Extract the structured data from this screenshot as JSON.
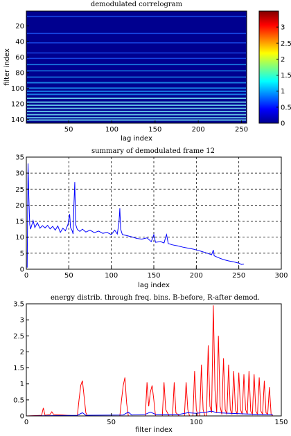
{
  "chart_data": [
    {
      "type": "heatmap",
      "title": "demodulated correlogram",
      "xlabel": "lag index",
      "ylabel": "filter index",
      "xlim": [
        1,
        256
      ],
      "ylim": [
        1,
        145
      ],
      "y_reversed": true,
      "xticks": [
        50,
        100,
        150,
        200,
        250
      ],
      "yticks": [
        20,
        40,
        60,
        80,
        100,
        120,
        140
      ],
      "colormap": "jet",
      "clim": [
        0,
        3.5
      ],
      "colorbar": {
        "ticks": [
          0,
          0.5,
          1,
          1.5,
          2,
          2.5,
          3
        ],
        "tick_labels": [
          "0",
          "0.5",
          "1",
          "1.5",
          "2",
          "2.5",
          "3"
        ]
      },
      "bright_rows": [
        8,
        30,
        42,
        55,
        62,
        70,
        78,
        86,
        93,
        100,
        104,
        108,
        113,
        118,
        122,
        126,
        130,
        134,
        138,
        141
      ],
      "background_color": "#00008f"
    },
    {
      "type": "line",
      "title": "summary of demodulated frame 12",
      "xlabel": "lag index",
      "ylabel": "",
      "xlim": [
        0,
        300
      ],
      "ylim": [
        0,
        35
      ],
      "xticks": [
        0,
        50,
        100,
        150,
        200,
        250,
        300
      ],
      "yticks": [
        0,
        5,
        10,
        15,
        20,
        25,
        30,
        35
      ],
      "grid": true,
      "series": [
        {
          "color": "#0000ff",
          "points": [
            [
              1,
              0.5
            ],
            [
              2,
              33
            ],
            [
              3,
              22
            ],
            [
              4,
              14
            ],
            [
              5,
              12.5
            ],
            [
              8,
              15.2
            ],
            [
              10,
              13
            ],
            [
              13,
              14.5
            ],
            [
              16,
              12.8
            ],
            [
              19,
              13.6
            ],
            [
              22,
              12.9
            ],
            [
              25,
              13.7
            ],
            [
              28,
              12.6
            ],
            [
              31,
              13.4
            ],
            [
              34,
              12.2
            ],
            [
              37,
              13.5
            ],
            [
              40,
              11.5
            ],
            [
              43,
              12.8
            ],
            [
              46,
              12
            ],
            [
              49,
              14
            ],
            [
              51,
              17.2
            ],
            [
              52,
              13
            ],
            [
              54,
              12
            ],
            [
              55,
              11
            ],
            [
              56,
              20
            ],
            [
              57,
              27.2
            ],
            [
              58,
              14
            ],
            [
              60,
              12.4
            ],
            [
              63,
              11.8
            ],
            [
              66,
              12.5
            ],
            [
              70,
              11.6
            ],
            [
              75,
              12.2
            ],
            [
              80,
              11.4
            ],
            [
              85,
              11.9
            ],
            [
              90,
              11.2
            ],
            [
              95,
              11.5
            ],
            [
              100,
              10.8
            ],
            [
              104,
              12.2
            ],
            [
              107,
              11
            ],
            [
              109,
              14.5
            ],
            [
              110,
              19
            ],
            [
              111,
              12.5
            ],
            [
              113,
              10.8
            ],
            [
              118,
              10.5
            ],
            [
              124,
              10.1
            ],
            [
              130,
              9.6
            ],
            [
              136,
              9.4
            ],
            [
              142,
              9.8
            ],
            [
              147,
              8.6
            ],
            [
              150,
              10.8
            ],
            [
              152,
              8.4
            ],
            [
              158,
              8.6
            ],
            [
              162,
              8.2
            ],
            [
              164,
              10
            ],
            [
              165,
              10.8
            ],
            [
              167,
              8
            ],
            [
              172,
              7.6
            ],
            [
              178,
              7.3
            ],
            [
              184,
              6.9
            ],
            [
              190,
              6.6
            ],
            [
              196,
              6.3
            ],
            [
              202,
              5.9
            ],
            [
              208,
              5.4
            ],
            [
              214,
              4.9
            ],
            [
              218,
              4.5
            ],
            [
              220,
              6
            ],
            [
              221,
              4.2
            ],
            [
              226,
              3.6
            ],
            [
              232,
              3
            ],
            [
              238,
              2.6
            ],
            [
              244,
              2.3
            ],
            [
              250,
              1.9
            ],
            [
              253,
              1.5
            ],
            [
              256,
              1.6
            ]
          ]
        }
      ]
    },
    {
      "type": "line",
      "title": "energy distrib. through freq. bins. B-before, R-after demod.",
      "xlabel": "filter index",
      "ylabel": "",
      "xlim": [
        0,
        150
      ],
      "ylim": [
        0,
        3.5
      ],
      "xticks": [
        0,
        50,
        100,
        150
      ],
      "yticks": [
        0,
        0.5,
        1,
        1.5,
        2,
        2.5,
        3,
        3.5
      ],
      "series": [
        {
          "name": "B",
          "color": "#0000ff",
          "points": [
            [
              0,
              0
            ],
            [
              30,
              0.02
            ],
            [
              33,
              0.1
            ],
            [
              35,
              0.02
            ],
            [
              57,
              0.03
            ],
            [
              60,
              0.12
            ],
            [
              62,
              0.03
            ],
            [
              70,
              0.05
            ],
            [
              73,
              0.12
            ],
            [
              76,
              0.05
            ],
            [
              90,
              0.05
            ],
            [
              95,
              0.1
            ],
            [
              100,
              0.08
            ],
            [
              106,
              0.12
            ],
            [
              109,
              0.15
            ],
            [
              112,
              0.1
            ],
            [
              120,
              0.08
            ],
            [
              130,
              0.06
            ],
            [
              145,
              0.04
            ]
          ]
        },
        {
          "name": "R",
          "color": "#ff0000",
          "points": [
            [
              0,
              0
            ],
            [
              9,
              0.02
            ],
            [
              10,
              0.25
            ],
            [
              11,
              0.02
            ],
            [
              14,
              0.05
            ],
            [
              15,
              0.13
            ],
            [
              16,
              0.05
            ],
            [
              30,
              0
            ],
            [
              31,
              0.5
            ],
            [
              32,
              0.95
            ],
            [
              33,
              1.1
            ],
            [
              34,
              0.6
            ],
            [
              35,
              0.1
            ],
            [
              36,
              0
            ],
            [
              55,
              0
            ],
            [
              56,
              0.5
            ],
            [
              57,
              0.95
            ],
            [
              58,
              1.2
            ],
            [
              59,
              0.4
            ],
            [
              60,
              0
            ],
            [
              70,
              0
            ],
            [
              71,
              1.05
            ],
            [
              72,
              0.3
            ],
            [
              73,
              0.75
            ],
            [
              74,
              0.95
            ],
            [
              75,
              0.5
            ],
            [
              76,
              0
            ],
            [
              80,
              0
            ],
            [
              81,
              1.05
            ],
            [
              82,
              0.2
            ],
            [
              84,
              0
            ],
            [
              86,
              0
            ],
            [
              87,
              1.05
            ],
            [
              88,
              0.1
            ],
            [
              90,
              0
            ],
            [
              93,
              0
            ],
            [
              94,
              1.05
            ],
            [
              95,
              0.2
            ],
            [
              96,
              0
            ],
            [
              98,
              0
            ],
            [
              99,
              1.4
            ],
            [
              100,
              0.2
            ],
            [
              101,
              0
            ],
            [
              102,
              0
            ],
            [
              103,
              1.6
            ],
            [
              104,
              0.2
            ],
            [
              105,
              0
            ],
            [
              106,
              0
            ],
            [
              107,
              2.2
            ],
            [
              108,
              0.3
            ],
            [
              109,
              0.1
            ],
            [
              110,
              3.45
            ],
            [
              111,
              0.8
            ],
            [
              112,
              0.1
            ],
            [
              113,
              2.5
            ],
            [
              114,
              0.3
            ],
            [
              115,
              0.05
            ],
            [
              116,
              1.8
            ],
            [
              117,
              0.2
            ],
            [
              118,
              0.05
            ],
            [
              119,
              1.6
            ],
            [
              120,
              0.2
            ],
            [
              121,
              0.05
            ],
            [
              122,
              1.4
            ],
            [
              123,
              0.2
            ],
            [
              124,
              0.05
            ],
            [
              125,
              1.35
            ],
            [
              126,
              0.2
            ],
            [
              127,
              0.05
            ],
            [
              128,
              1.3
            ],
            [
              129,
              0.2
            ],
            [
              130,
              0.05
            ],
            [
              131,
              1.4
            ],
            [
              132,
              0.15
            ],
            [
              133,
              0.05
            ],
            [
              134,
              1.3
            ],
            [
              135,
              0.15
            ],
            [
              136,
              0.05
            ],
            [
              137,
              1.2
            ],
            [
              138,
              0.15
            ],
            [
              139,
              0.05
            ],
            [
              140,
              1.1
            ],
            [
              141,
              0.1
            ],
            [
              142,
              0.05
            ],
            [
              143,
              0.9
            ],
            [
              144,
              0.05
            ],
            [
              145,
              0
            ]
          ]
        }
      ]
    }
  ]
}
